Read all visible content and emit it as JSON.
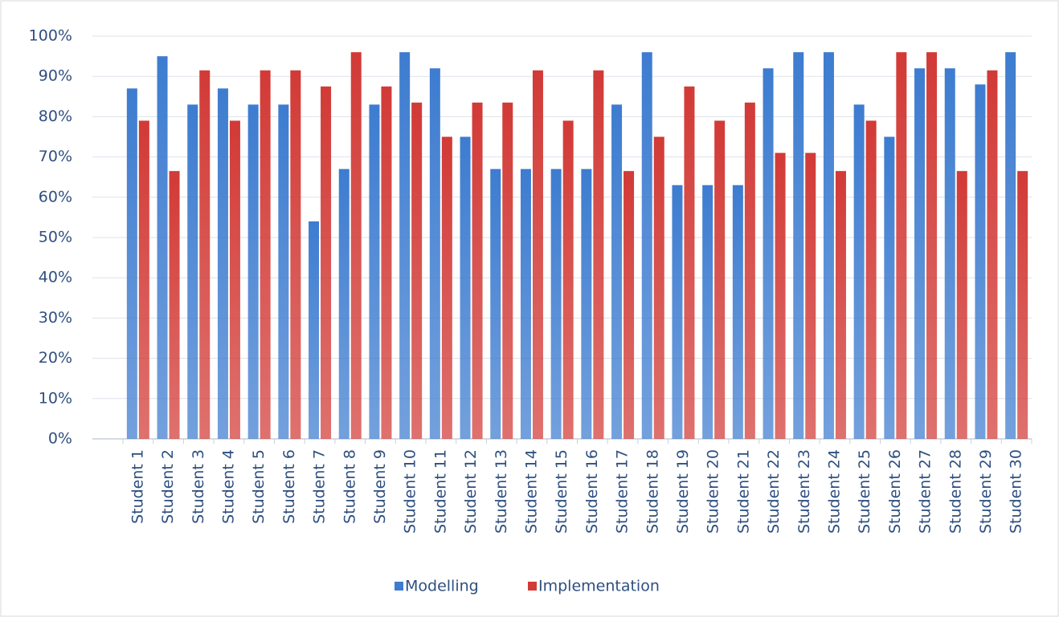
{
  "chart_data": {
    "type": "bar",
    "categories": [
      "Student 1",
      "Student 2",
      "Student 3",
      "Student 4",
      "Student 5",
      "Student 6",
      "Student 7",
      "Student 8",
      "Student 9",
      "Student 10",
      "Student 11",
      "Student 12",
      "Student 13",
      "Student 14",
      "Student 15",
      "Student 16",
      "Student 17",
      "Student 18",
      "Student 19",
      "Student 20",
      "Student 21",
      "Student 22",
      "Student 23",
      "Student 24",
      "Student 25",
      "Student 26",
      "Student 27",
      "Student 28",
      "Student 29",
      "Student 30"
    ],
    "series": [
      {
        "name": "Modelling",
        "color": "#3d7cd0",
        "values": [
          87,
          95,
          83,
          87,
          83,
          83,
          54,
          67,
          83,
          96,
          92,
          75,
          67,
          67,
          67,
          67,
          83,
          96,
          63,
          63,
          63,
          92,
          96,
          96,
          83,
          75,
          92,
          92,
          88,
          96
        ]
      },
      {
        "name": "Implementation",
        "color": "#d23a36",
        "values": [
          79,
          66.5,
          91.5,
          79,
          91.5,
          91.5,
          87.5,
          96,
          87.5,
          83.5,
          75,
          83.5,
          83.5,
          91.5,
          79,
          91.5,
          66.5,
          75,
          87.5,
          79,
          83.5,
          71,
          71,
          66.5,
          79,
          96,
          96,
          66.5,
          91.5,
          66.5
        ]
      }
    ],
    "ylim": [
      0,
      100
    ],
    "yticks": [
      {
        "value": 0,
        "label": "0%"
      },
      {
        "value": 10,
        "label": "10%"
      },
      {
        "value": 20,
        "label": "20%"
      },
      {
        "value": 30,
        "label": "30%"
      },
      {
        "value": 40,
        "label": "40%"
      },
      {
        "value": 50,
        "label": "50%"
      },
      {
        "value": 60,
        "label": "60%"
      },
      {
        "value": 70,
        "label": "70%"
      },
      {
        "value": 80,
        "label": "80%"
      },
      {
        "value": 90,
        "label": "90%"
      },
      {
        "value": 100,
        "label": "100%"
      }
    ],
    "grid": true,
    "legend": "bottom"
  }
}
